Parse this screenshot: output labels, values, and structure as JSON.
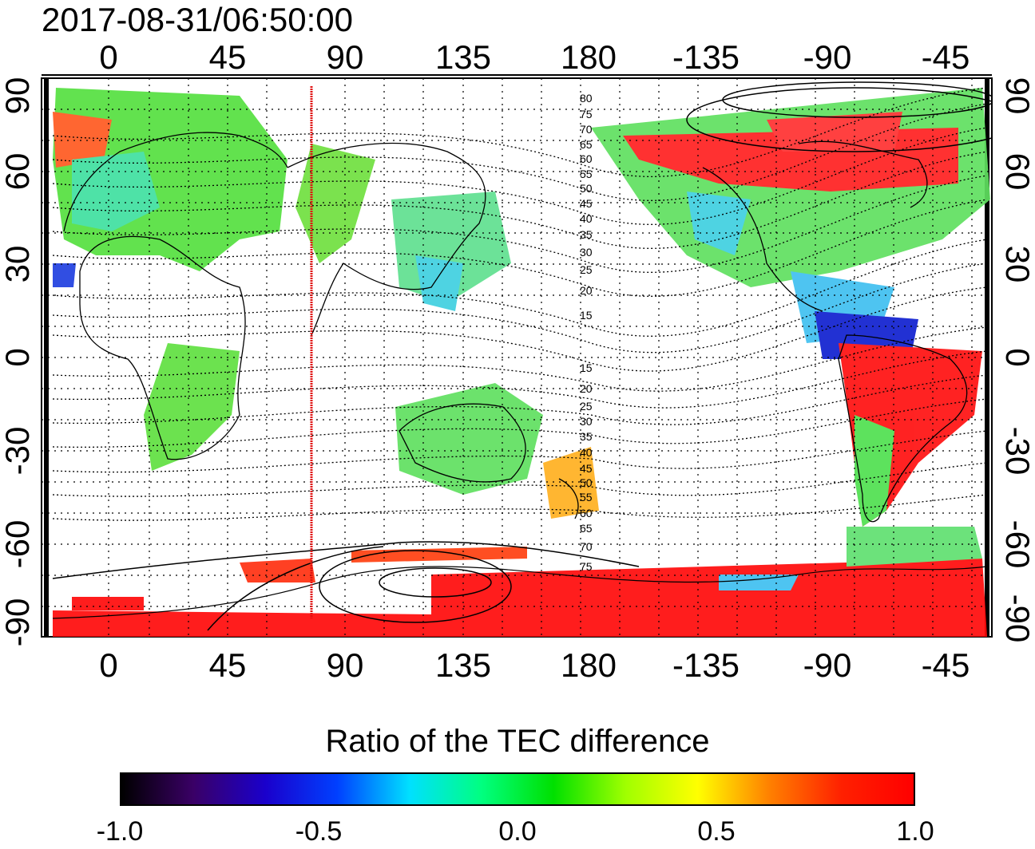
{
  "title": "2017-08-31/06:50:00",
  "map": {
    "top_lon_labels": [
      "0",
      "45",
      "90",
      "135",
      "180",
      "-135",
      "-90",
      "-45"
    ],
    "bottom_lon_labels": [
      "0",
      "45",
      "90",
      "135",
      "180",
      "-135",
      "-90",
      "-45"
    ],
    "lat_labels": [
      "90",
      "60",
      "30",
      "0",
      "-30",
      "-60",
      "-90"
    ],
    "lon_range": [
      -20,
      340
    ],
    "lat_range": [
      -90,
      90
    ],
    "marker_longitude": 77,
    "marker_color": "#e01010",
    "contour_labels_north": [
      "80",
      "75",
      "70",
      "65",
      "60",
      "55",
      "50",
      "45",
      "40",
      "35",
      "30",
      "25",
      "20",
      "15"
    ],
    "contour_labels_south": [
      "15",
      "20",
      "25",
      "30",
      "35",
      "40",
      "45",
      "50",
      "55",
      "60",
      "65",
      "70",
      "75"
    ]
  },
  "colorbar": {
    "title": "Ratio of the TEC difference",
    "ticks": [
      "-1.0",
      "-0.5",
      "0.0",
      "0.5",
      "1.0"
    ],
    "range": [
      -1.0,
      1.0
    ],
    "colors": [
      "#000000",
      "#3a0066",
      "#1a00cc",
      "#0040ff",
      "#00e0ff",
      "#00ff80",
      "#00e000",
      "#a0ff00",
      "#ffff00",
      "#ff8000",
      "#ff2000",
      "#ff0000"
    ]
  }
}
